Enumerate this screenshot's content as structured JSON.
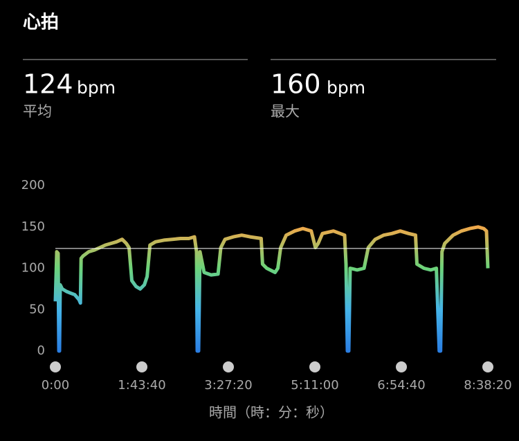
{
  "header": {
    "title": "心拍"
  },
  "stats": [
    {
      "value": "124",
      "unit": "bpm",
      "label": "平均"
    },
    {
      "value": "160",
      "unit": "bpm",
      "label": "最大"
    }
  ],
  "chart_data": {
    "type": "line",
    "x_label": "時間（時：分：秒）",
    "average": 124,
    "colors": [
      "#2b7fe3",
      "#45b4e8",
      "#6cd37a",
      "#f0a84a",
      "#ff9a50"
    ],
    "x": [
      0,
      100,
      200,
      250,
      300,
      350,
      500,
      800,
      1100,
      1400,
      1700,
      1800,
      1850,
      2000,
      2400,
      2800,
      3200,
      3600,
      4000,
      4400,
      4800,
      5100,
      5300,
      5500,
      5800,
      6100,
      6400,
      6600,
      6800,
      7200,
      7800,
      8400,
      9000,
      9600,
      10000,
      10150,
      10200,
      10300,
      10400,
      10700,
      11200,
      11700,
      11900,
      12200,
      12800,
      13400,
      14000,
      14800,
      14900,
      15200,
      15800,
      16000,
      16200,
      16600,
      17200,
      17800,
      18400,
      18700,
      18900,
      19200,
      20000,
      20800,
      20900,
      21000,
      21100,
      21200,
      21700,
      22200,
      22500,
      23000,
      23600,
      24200,
      24800,
      25400,
      25900,
      26000,
      26500,
      27000,
      27400,
      27600,
      27700,
      27800,
      28000,
      28600,
      29200,
      29800,
      30400,
      30800,
      31000,
      31100
    ],
    "values": [
      60,
      120,
      118,
      0,
      0,
      80,
      75,
      72,
      70,
      68,
      62,
      58,
      112,
      115,
      120,
      122,
      125,
      128,
      130,
      132,
      135,
      130,
      125,
      85,
      78,
      75,
      80,
      90,
      128,
      132,
      134,
      135,
      136,
      136,
      138,
      120,
      0,
      0,
      120,
      95,
      92,
      93,
      125,
      135,
      138,
      140,
      138,
      136,
      105,
      100,
      95,
      100,
      125,
      140,
      145,
      148,
      145,
      125,
      130,
      142,
      145,
      140,
      105,
      0,
      0,
      100,
      98,
      100,
      125,
      135,
      140,
      142,
      145,
      142,
      140,
      105,
      100,
      98,
      100,
      0,
      0,
      120,
      130,
      140,
      145,
      148,
      150,
      148,
      145,
      100
    ],
    "xlim": [
      0,
      31100
    ],
    "ylim": [
      0,
      200
    ],
    "yticks": [
      0,
      50,
      100,
      150,
      200
    ],
    "xticks": [
      {
        "value": 0,
        "label": "0:00"
      },
      {
        "value": 6220,
        "label": "1:43:40"
      },
      {
        "value": 12440,
        "label": "3:27:20"
      },
      {
        "value": 18660,
        "label": "5:11:00"
      },
      {
        "value": 24880,
        "label": "6:54:40"
      },
      {
        "value": 31100,
        "label": "8:38:20"
      }
    ]
  }
}
